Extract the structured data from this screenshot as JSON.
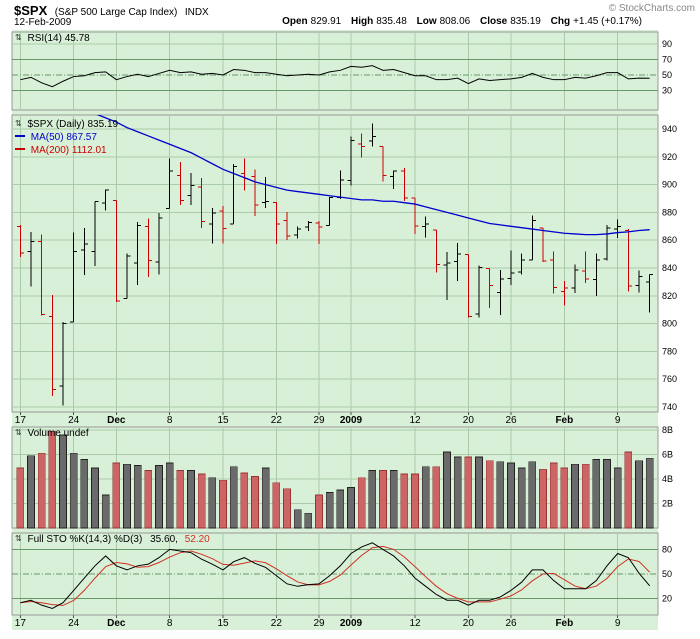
{
  "header": {
    "symbol": "$SPX",
    "name": "(S&P 500 Large Cap Index)",
    "exchange": "INDX",
    "date": "12-Feb-2009",
    "copyright": "© StockCharts.com",
    "quote": {
      "open_label": "Open",
      "open_value": "829.91",
      "high_label": "High",
      "high_value": "835.48",
      "low_label": "Low",
      "low_value": "808.06",
      "close_label": "Close",
      "close_value": "835.19",
      "chg_label": "Chg",
      "chg_value": "+1.45 (+0.17%)"
    }
  },
  "icons": {
    "panel_toggle": "⇅"
  },
  "panels": {
    "rsi": {
      "label": "RSI(14) 45.78"
    },
    "price": {
      "legend_symbol": "$SPX (Daily) 835.19",
      "legend_ma50": "MA(50) 867.57",
      "legend_ma200": "MA(200) 1112.01"
    },
    "volume": {
      "label": "Volume undef"
    },
    "sto": {
      "label": "Full STO %K(14,3) %D(3)",
      "k_value": "35.60,",
      "d_value": "52.20"
    }
  },
  "colors": {
    "panel_bg": "#d8f0d8",
    "panel_border": "#999999",
    "grid": "#aaccaa",
    "band": "#669966",
    "up": "#000000",
    "down": "#cc0000",
    "ma50": "#0000cc",
    "ma200": "#cc0000",
    "vol_up": "#6a6a6a",
    "vol_up_stroke": "#222222",
    "vol_down": "#cc6666",
    "vol_down_stroke": "#993333",
    "rsi_line": "#000000",
    "sto_k": "#000000",
    "sto_d": "#d03020",
    "copyright": "#888888"
  },
  "chart_data": {
    "type": "ohlc",
    "symbol": "$SPX",
    "timeframe": "Daily",
    "dates": [
      "Nov 17",
      "Nov 18",
      "Nov 19",
      "Nov 20",
      "Nov 21",
      "Nov 24",
      "Nov 25",
      "Nov 26",
      "Nov 28",
      "Dec 1",
      "Dec 2",
      "Dec 3",
      "Dec 4",
      "Dec 5",
      "Dec 8",
      "Dec 9",
      "Dec 10",
      "Dec 11",
      "Dec 12",
      "Dec 15",
      "Dec 16",
      "Dec 17",
      "Dec 18",
      "Dec 19",
      "Dec 22",
      "Dec 23",
      "Dec 24",
      "Dec 26",
      "Dec 29",
      "Dec 30",
      "Dec 31",
      "Jan 2",
      "Jan 5",
      "Jan 6",
      "Jan 7",
      "Jan 8",
      "Jan 9",
      "Jan 12",
      "Jan 13",
      "Jan 14",
      "Jan 15",
      "Jan 16",
      "Jan 20",
      "Jan 21",
      "Jan 22",
      "Jan 23",
      "Jan 26",
      "Jan 27",
      "Jan 28",
      "Jan 29",
      "Jan 30",
      "Feb 2",
      "Feb 3",
      "Feb 4",
      "Feb 5",
      "Feb 6",
      "Feb 9",
      "Feb 10",
      "Feb 11",
      "Feb 12"
    ],
    "x_ticks": [
      {
        "i": 0,
        "label": "17",
        "bold": false
      },
      {
        "i": 5,
        "label": "24",
        "bold": false
      },
      {
        "i": 9,
        "label": "Dec",
        "bold": true
      },
      {
        "i": 14,
        "label": "8",
        "bold": false
      },
      {
        "i": 19,
        "label": "15",
        "bold": false
      },
      {
        "i": 24,
        "label": "22",
        "bold": false
      },
      {
        "i": 28,
        "label": "29",
        "bold": false
      },
      {
        "i": 31,
        "label": "2009",
        "bold": true
      },
      {
        "i": 37,
        "label": "12",
        "bold": false
      },
      {
        "i": 42,
        "label": "20",
        "bold": false
      },
      {
        "i": 46,
        "label": "26",
        "bold": false
      },
      {
        "i": 51,
        "label": "Feb",
        "bold": true
      },
      {
        "i": 56,
        "label": "9",
        "bold": false
      }
    ],
    "price": {
      "ylim": [
        740,
        940
      ],
      "axis_ticks": [
        940,
        920,
        900,
        880,
        860,
        840,
        820,
        800,
        780,
        760,
        740
      ],
      "ma50_last": 867.57,
      "ma200_last": 1112.01,
      "ohlc": [
        [
          870.0,
          871.0,
          848.0,
          850.75
        ],
        [
          852.0,
          866.0,
          826.8,
          859.12
        ],
        [
          859.0,
          864.0,
          806.0,
          806.58
        ],
        [
          805.0,
          820.5,
          747.8,
          752.44
        ],
        [
          755.0,
          801.2,
          741.0,
          800.03
        ],
        [
          801.0,
          865.6,
          801.0,
          851.81
        ],
        [
          853.0,
          868.9,
          835.0,
          857.39
        ],
        [
          852.0,
          887.7,
          841.4,
          887.68
        ],
        [
          886.9,
          896.3,
          881.2,
          896.24
        ],
        [
          888.6,
          888.6,
          815.7,
          816.21
        ],
        [
          817.9,
          850.6,
          817.9,
          848.81
        ],
        [
          843.6,
          873.1,
          827.6,
          870.74
        ],
        [
          869.8,
          875.6,
          833.6,
          845.22
        ],
        [
          844.4,
          879.4,
          835.2,
          876.07
        ],
        [
          882.7,
          918.6,
          882.7,
          909.7
        ],
        [
          906.5,
          916.3,
          885.4,
          888.67
        ],
        [
          892.2,
          908.3,
          885.5,
          899.24
        ],
        [
          898.4,
          904.6,
          868.7,
          873.59
        ],
        [
          871.8,
          883.2,
          857.7,
          879.73
        ],
        [
          881.1,
          884.6,
          857.7,
          868.57
        ],
        [
          871.5,
          914.7,
          871.5,
          913.18
        ],
        [
          908.1,
          918.9,
          895.9,
          904.42
        ],
        [
          906.0,
          911.0,
          877.4,
          885.28
        ],
        [
          887.0,
          905.5,
          883.0,
          887.88
        ],
        [
          887.2,
          887.4,
          857.1,
          871.63
        ],
        [
          874.3,
          880.4,
          860.1,
          863.16
        ],
        [
          863.9,
          869.8,
          861.4,
          868.15
        ],
        [
          869.5,
          873.7,
          866.5,
          872.8
        ],
        [
          872.4,
          873.7,
          857.1,
          869.42
        ],
        [
          870.6,
          891.1,
          870.6,
          890.64
        ],
        [
          890.6,
          910.3,
          889.7,
          903.25
        ],
        [
          903.0,
          934.7,
          899.4,
          931.8
        ],
        [
          929.2,
          936.6,
          919.5,
          927.45
        ],
        [
          931.2,
          943.9,
          927.3,
          934.7
        ],
        [
          927.5,
          927.5,
          902.4,
          906.65
        ],
        [
          905.7,
          910.0,
          896.8,
          909.73
        ],
        [
          909.9,
          911.9,
          888.3,
          890.35
        ],
        [
          890.4,
          890.4,
          864.3,
          870.26
        ],
        [
          869.8,
          877.0,
          862.0,
          871.79
        ],
        [
          867.3,
          867.3,
          836.9,
          842.62
        ],
        [
          842.0,
          851.6,
          817.0,
          843.74
        ],
        [
          844.5,
          858.1,
          830.7,
          850.12
        ],
        [
          849.6,
          849.6,
          804.5,
          805.22
        ],
        [
          806.8,
          841.7,
          804.3,
          840.24
        ],
        [
          839.7,
          839.7,
          811.3,
          827.5
        ],
        [
          822.2,
          838.6,
          806.1,
          831.95
        ],
        [
          832.5,
          852.5,
          827.7,
          836.57
        ],
        [
          837.3,
          850.5,
          835.4,
          845.71
        ],
        [
          845.7,
          877.9,
          845.7,
          874.09
        ],
        [
          868.9,
          868.9,
          844.2,
          845.14
        ],
        [
          845.7,
          851.7,
          821.7,
          825.88
        ],
        [
          823.1,
          830.8,
          812.9,
          825.44
        ],
        [
          825.7,
          842.6,
          822.0,
          838.51
        ],
        [
          837.8,
          851.9,
          829.2,
          832.23
        ],
        [
          831.8,
          850.6,
          819.9,
          845.85
        ],
        [
          846.5,
          870.8,
          845.4,
          868.6
        ],
        [
          868.2,
          875.0,
          861.7,
          869.89
        ],
        [
          866.9,
          868.1,
          823.0,
          827.16
        ],
        [
          827.5,
          838.2,
          822.3,
          833.74
        ],
        [
          829.91,
          835.48,
          808.06,
          835.19
        ]
      ],
      "ma50": [
        990,
        984,
        978,
        971,
        965,
        960,
        955,
        951,
        948,
        945,
        941,
        938,
        935,
        932,
        929,
        926,
        923,
        919,
        915,
        911,
        908,
        905,
        902,
        900,
        898,
        896,
        895,
        894,
        893,
        892,
        891,
        890,
        889,
        889,
        888,
        888,
        887,
        886,
        884,
        882,
        880,
        878,
        876,
        874,
        872,
        871,
        870,
        869,
        868,
        867,
        866,
        865,
        864.5,
        864,
        864,
        864.5,
        865.5,
        866,
        867,
        867.57
      ]
    },
    "volume": {
      "ylim": [
        0,
        8
      ],
      "unit": "B",
      "axis_ticks": [
        {
          "v": 8,
          "label": "8B"
        },
        {
          "v": 6,
          "label": "6B"
        },
        {
          "v": 4,
          "label": "4B"
        },
        {
          "v": 2,
          "label": "2B"
        }
      ],
      "values": [
        4.9,
        5.9,
        6.1,
        7.9,
        7.6,
        6.1,
        5.6,
        4.9,
        2.7,
        5.3,
        5.2,
        5.1,
        4.7,
        5.1,
        5.3,
        4.7,
        4.7,
        4.4,
        4.1,
        3.9,
        5.0,
        4.5,
        4.2,
        4.9,
        3.7,
        3.2,
        1.5,
        1.2,
        2.7,
        2.9,
        3.1,
        3.3,
        4.1,
        4.7,
        4.7,
        4.7,
        4.4,
        4.4,
        5.0,
        5.0,
        6.2,
        5.8,
        5.8,
        5.8,
        5.5,
        5.4,
        5.3,
        4.9,
        5.4,
        4.8,
        5.3,
        4.9,
        5.2,
        5.2,
        5.6,
        5.6,
        4.9,
        6.2,
        5.5,
        5.7
      ]
    },
    "rsi": {
      "ylim": [
        0,
        100
      ],
      "period": 14,
      "last": 45.78,
      "axis_ticks": [
        90,
        70,
        50,
        30
      ],
      "grid_lines": [
        90
      ],
      "band_lines": [
        70,
        30
      ],
      "mid_line": 50,
      "values": [
        44,
        47,
        40,
        35,
        42,
        48,
        49,
        53,
        54,
        44,
        48,
        51,
        48,
        52,
        56,
        53,
        54,
        51,
        52,
        50,
        57,
        56,
        53,
        53,
        51,
        49,
        50,
        51,
        50,
        54,
        56,
        61,
        60,
        62,
        56,
        57,
        53,
        49,
        49,
        44,
        44,
        46,
        39,
        45,
        43,
        44,
        45,
        47,
        52,
        47,
        44,
        44,
        47,
        46,
        49,
        53,
        53,
        45,
        46,
        45.78
      ]
    },
    "sto": {
      "ylim": [
        0,
        100
      ],
      "last_k": 35.6,
      "last_d": 52.2,
      "band_lines": [
        80,
        20
      ],
      "mid_line": 50,
      "k": [
        15,
        18,
        12,
        8,
        15,
        30,
        45,
        60,
        72,
        60,
        55,
        60,
        62,
        70,
        80,
        78,
        76,
        68,
        62,
        55,
        65,
        70,
        63,
        58,
        48,
        38,
        35,
        37,
        38,
        48,
        60,
        75,
        83,
        88,
        80,
        72,
        60,
        45,
        35,
        25,
        18,
        18,
        12,
        18,
        18,
        22,
        30,
        40,
        55,
        55,
        42,
        32,
        32,
        32,
        42,
        60,
        75,
        70,
        51,
        35.6
      ],
      "d": [
        15,
        16.5,
        15,
        12.7,
        11.7,
        17.7,
        30,
        45,
        59,
        64,
        62.3,
        58.3,
        59,
        64,
        70.7,
        76,
        78,
        74,
        68.7,
        61.7,
        60.7,
        63.3,
        66,
        63.7,
        56.3,
        48,
        40.3,
        36.7,
        36.7,
        41,
        48.7,
        61,
        72.7,
        82,
        83.7,
        80,
        70.7,
        59,
        46.7,
        35,
        26,
        20.3,
        16,
        16,
        16,
        19.3,
        23.3,
        30.7,
        41.7,
        50,
        50.7,
        43,
        35.3,
        32,
        35.3,
        44.7,
        59,
        68.3,
        65.3,
        52.2
      ]
    }
  }
}
